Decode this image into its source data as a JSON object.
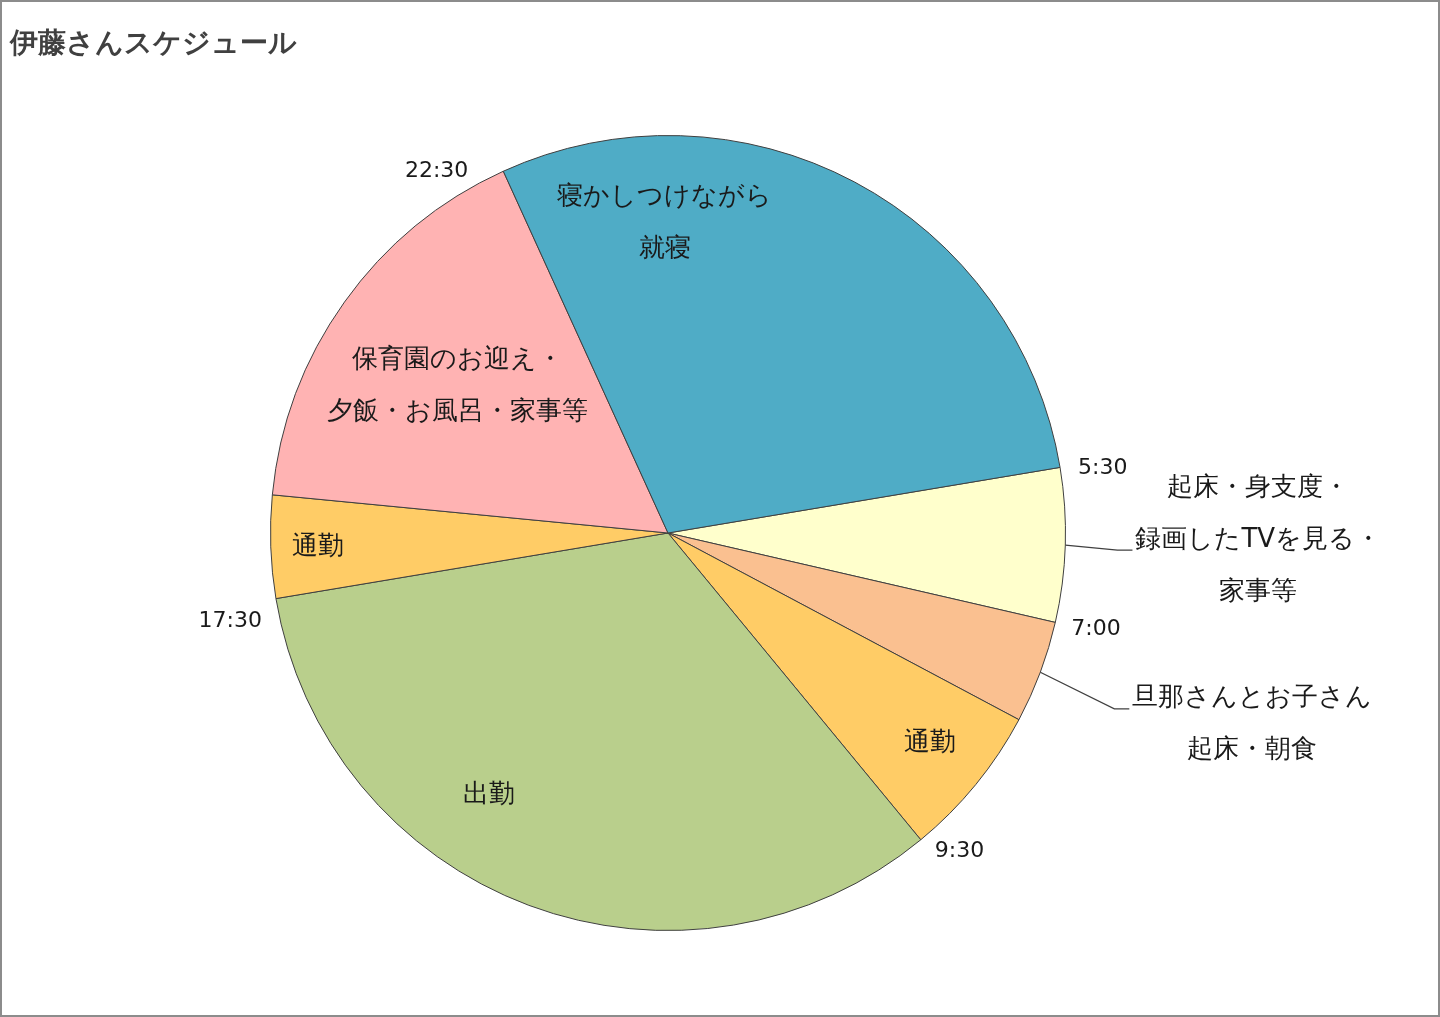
{
  "chart_data": {
    "type": "pie",
    "title": "伊藤さんスケジュール",
    "categories": [
      "起床・身支度・録画したTVを見る・家事等",
      "旦那さんとお子さん起床・朝食",
      "通勤",
      "出勤",
      "通勤",
      "保育園のお迎え・夕飯・お風呂・家事等",
      "寝かしつけながら就寝"
    ],
    "values": [
      6.25,
      4.17,
      6.25,
      33.33,
      4.17,
      16.67,
      29.16
    ],
    "colors": [
      "#ffffcc",
      "#fac090",
      "#ffcc66",
      "#b9cf8c",
      "#ffcc66",
      "#ffb3b3",
      "#4facc6"
    ],
    "annotations": [
      "5:30",
      "7:00",
      "9:30",
      "17:30",
      "22:30"
    ]
  }
}
